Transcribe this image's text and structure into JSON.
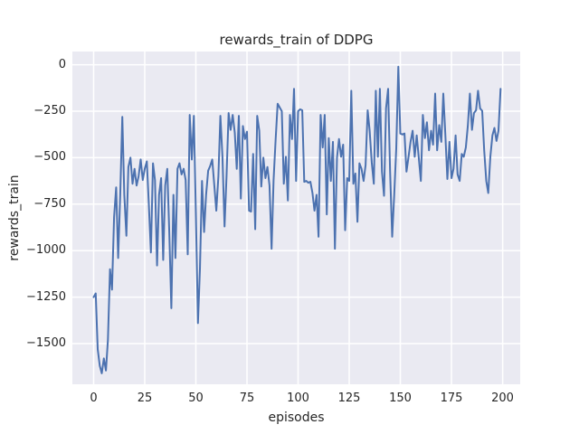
{
  "chart_data": {
    "type": "line",
    "title": "rewards_train of DDPG",
    "xlabel": "episodes",
    "ylabel": "rewards_train",
    "grid": true,
    "legend": "none",
    "style": {
      "figure_bg": "#ffffff",
      "axes_bg": "#eaeaf2",
      "grid_color": "#ffffff",
      "text_color": "#262626",
      "line_color": "#4c72b0"
    },
    "xlim": [
      -10.4,
      208.6
    ],
    "ylim": [
      -1719,
      71
    ],
    "xticks": [
      0,
      25,
      50,
      75,
      100,
      125,
      150,
      175,
      200
    ],
    "xtick_labels": [
      "0",
      "25",
      "50",
      "75",
      "100",
      "125",
      "150",
      "175",
      "200"
    ],
    "yticks": [
      0,
      -250,
      -500,
      -750,
      -1000,
      -1250,
      -1500
    ],
    "ytick_labels": [
      "0",
      "−250",
      "−500",
      "−750",
      "−1000",
      "−1250",
      "−1500"
    ],
    "x_start": 0,
    "x_step": 1,
    "series": [
      {
        "name": "rewards_train",
        "color": "#4c72b0",
        "values": [
          -1250,
          -1230,
          -1530,
          -1620,
          -1660,
          -1580,
          -1645,
          -1480,
          -1100,
          -1210,
          -820,
          -660,
          -1040,
          -700,
          -280,
          -700,
          -920,
          -550,
          -500,
          -640,
          -560,
          -650,
          -600,
          -510,
          -620,
          -560,
          -520,
          -750,
          -1010,
          -530,
          -620,
          -1080,
          -700,
          -610,
          -1050,
          -650,
          -560,
          -900,
          -1310,
          -700,
          -1040,
          -560,
          -530,
          -590,
          -560,
          -620,
          -1020,
          -270,
          -510,
          -275,
          -800,
          -1390,
          -1100,
          -625,
          -900,
          -700,
          -570,
          -545,
          -510,
          -650,
          -785,
          -600,
          -275,
          -495,
          -870,
          -600,
          -260,
          -350,
          -270,
          -365,
          -560,
          -275,
          -720,
          -330,
          -400,
          -360,
          -785,
          -790,
          -480,
          -885,
          -275,
          -355,
          -655,
          -500,
          -610,
          -550,
          -650,
          -990,
          -620,
          -400,
          -210,
          -230,
          -250,
          -640,
          -495,
          -730,
          -270,
          -400,
          -130,
          -625,
          -250,
          -240,
          -245,
          -630,
          -625,
          -635,
          -630,
          -690,
          -785,
          -700,
          -925,
          -270,
          -445,
          -270,
          -805,
          -395,
          -625,
          -415,
          -990,
          -500,
          -400,
          -495,
          -430,
          -890,
          -610,
          -625,
          -140,
          -640,
          -585,
          -845,
          -530,
          -560,
          -625,
          -540,
          -245,
          -355,
          -525,
          -640,
          -140,
          -495,
          -130,
          -575,
          -705,
          -235,
          -130,
          -575,
          -925,
          -695,
          -450,
          -10,
          -370,
          -375,
          -370,
          -575,
          -495,
          -415,
          -355,
          -495,
          -380,
          -500,
          -625,
          -270,
          -395,
          -310,
          -460,
          -355,
          -430,
          -155,
          -460,
          -325,
          -415,
          -155,
          -380,
          -615,
          -415,
          -610,
          -560,
          -380,
          -590,
          -625,
          -480,
          -495,
          -445,
          -330,
          -155,
          -350,
          -260,
          -245,
          -140,
          -235,
          -248,
          -460,
          -625,
          -690,
          -495,
          -380,
          -340,
          -410,
          -355,
          -130
        ]
      }
    ]
  }
}
